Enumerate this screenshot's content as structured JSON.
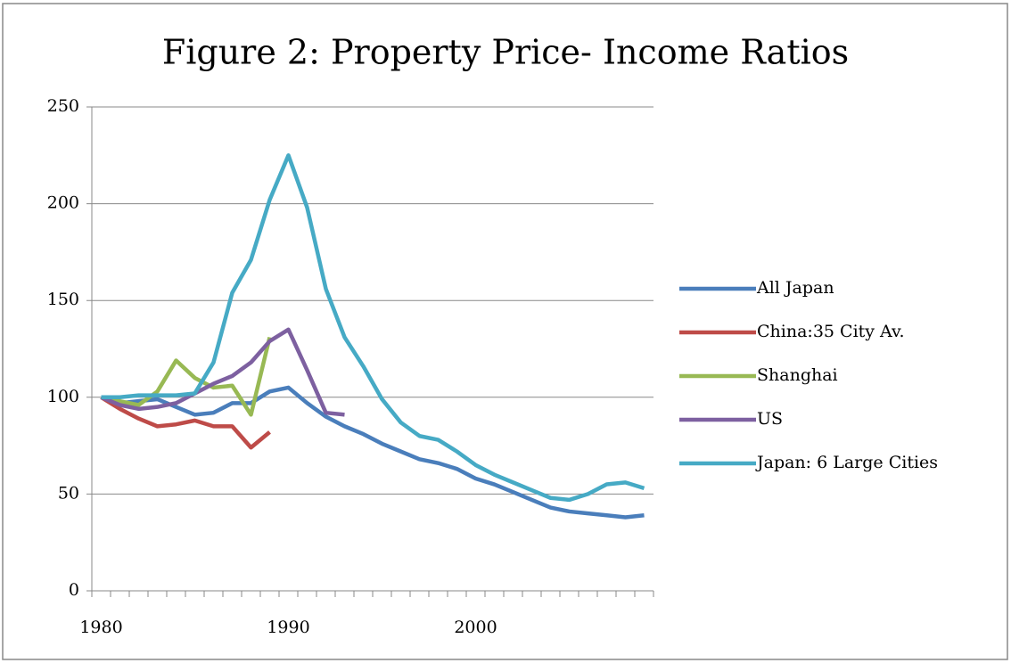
{
  "chart_data": {
    "type": "line",
    "title": "Figure 2: Property Price- Income Ratios",
    "categories": [
      "1980",
      null,
      null,
      null,
      null,
      null,
      null,
      null,
      null,
      null,
      "1990",
      null,
      null,
      null,
      null,
      null,
      null,
      null,
      null,
      null,
      "2000",
      null,
      null,
      null,
      null,
      null,
      null,
      null,
      null,
      null
    ],
    "series": [
      {
        "name": "All Japan",
        "color": "#4a7ebb",
        "values": [
          100,
          97,
          98,
          99,
          95,
          91,
          92,
          97,
          97,
          103,
          105,
          97,
          90,
          85,
          81,
          76,
          72,
          68,
          66,
          63,
          58,
          55,
          51,
          47,
          43,
          41,
          40,
          39,
          38,
          39
        ]
      },
      {
        "name": "China:35 City Av.",
        "color": "#be4b48",
        "values": [
          100,
          94,
          89,
          85,
          86,
          88,
          85,
          85,
          74,
          82,
          null,
          null,
          null,
          null,
          null,
          null,
          null,
          null,
          null,
          null,
          null,
          null,
          null,
          null,
          null,
          null,
          null,
          null,
          null,
          null
        ]
      },
      {
        "name": "Shanghai",
        "color": "#98b954",
        "values": [
          100,
          98,
          96,
          103,
          119,
          110,
          105,
          106,
          91,
          131,
          null,
          null,
          null,
          null,
          null,
          null,
          null,
          null,
          null,
          null,
          null,
          null,
          null,
          null,
          null,
          null,
          null,
          null,
          null,
          null
        ]
      },
      {
        "name": "US",
        "color": "#7d60a0",
        "values": [
          100,
          96,
          94,
          95,
          97,
          102,
          107,
          111,
          118,
          129,
          135,
          114,
          92,
          91,
          null,
          null,
          null,
          null,
          null,
          null,
          null,
          null,
          null,
          null,
          null,
          null,
          null,
          null,
          null,
          null
        ]
      },
      {
        "name": "Japan: 6 Large Cities",
        "color": "#46aac5",
        "values": [
          100,
          100,
          101,
          101,
          101,
          102,
          118,
          154,
          171,
          202,
          225,
          198,
          156,
          131,
          116,
          99,
          87,
          80,
          78,
          72,
          65,
          60,
          56,
          52,
          48,
          47,
          50,
          55,
          56,
          53
        ]
      }
    ],
    "ylim": [
      0,
      250
    ],
    "yticks": [
      0,
      50,
      100,
      150,
      200,
      250
    ],
    "grid": true,
    "legend": "right"
  }
}
